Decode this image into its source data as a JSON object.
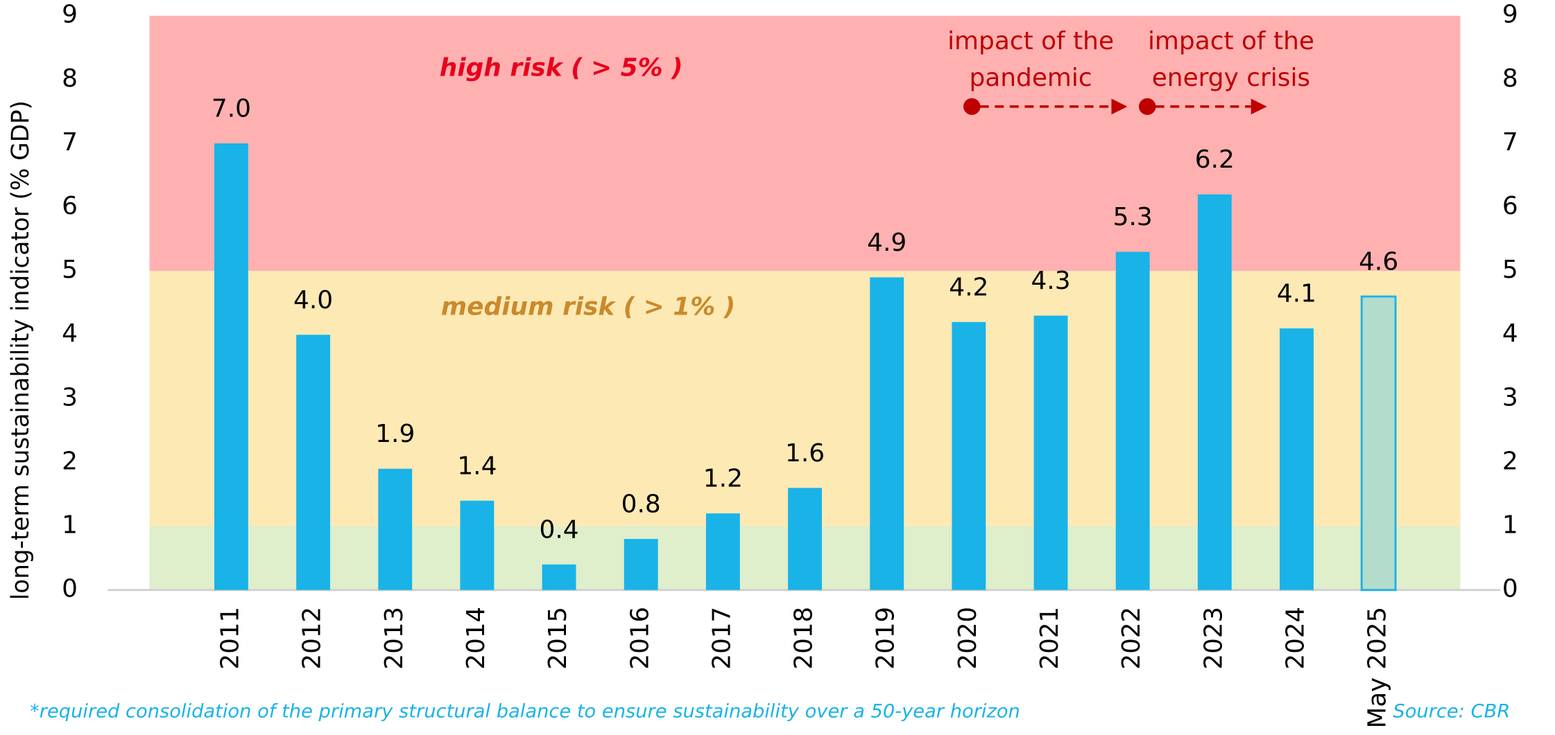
{
  "chart_data": {
    "type": "bar",
    "y_label": "long-term sustainability indicator (% GDP)",
    "categories": [
      "2011",
      "2012",
      "2013",
      "2014",
      "2015",
      "2016",
      "2017",
      "2018",
      "2019",
      "2020",
      "2021",
      "2022",
      "2023",
      "2024",
      "May 2025"
    ],
    "values": [
      7.0,
      4.0,
      1.9,
      1.4,
      0.4,
      0.8,
      1.2,
      1.6,
      4.9,
      4.2,
      4.3,
      5.3,
      6.2,
      4.1,
      4.6
    ],
    "value_labels": [
      "7.0",
      "4.0",
      "1.9",
      "1.4",
      "0.4",
      "0.8",
      "1.2",
      "1.6",
      "4.9",
      "4.2",
      "4.3",
      "5.3",
      "6.2",
      "4.1",
      "4.6"
    ],
    "fills": [
      "#19b3e8",
      "#19b3e8",
      "#19b3e8",
      "#19b3e8",
      "#19b3e8",
      "#19b3e8",
      "#19b3e8",
      "#19b3e8",
      "#19b3e8",
      "#19b3e8",
      "#19b3e8",
      "#19b3e8",
      "#19b3e8",
      "#19b3e8",
      "#b3dccc"
    ],
    "stroke": "#19b3e8",
    "ylim": [
      0,
      9
    ],
    "yticks": [
      0,
      1,
      2,
      3,
      4,
      5,
      6,
      7,
      8,
      9
    ],
    "y2lim": [
      0,
      9
    ],
    "y2ticks": [
      0,
      1,
      2,
      3,
      4,
      5,
      6,
      7,
      8,
      9
    ],
    "bands": [
      {
        "label": "high risk ( > 5% )",
        "from": 5,
        "to": 9,
        "color": "#ffb1b1",
        "label_color": "#e8001c"
      },
      {
        "label": "medium risk ( > 1% )",
        "from": 1,
        "to": 5,
        "color": "#fde9b4",
        "label_color": "#c98a2c"
      },
      {
        "from": 0,
        "to": 1,
        "color": "#dfeecb"
      }
    ],
    "annotations": [
      {
        "lines": [
          "impact of the",
          "pandemic"
        ]
      },
      {
        "lines": [
          "impact of the",
          "energy crisis"
        ]
      }
    ],
    "footnote": "*required consolidation of the primary structural balance to ensure sustainability over a 50-year horizon",
    "source": "Source: CBR"
  }
}
